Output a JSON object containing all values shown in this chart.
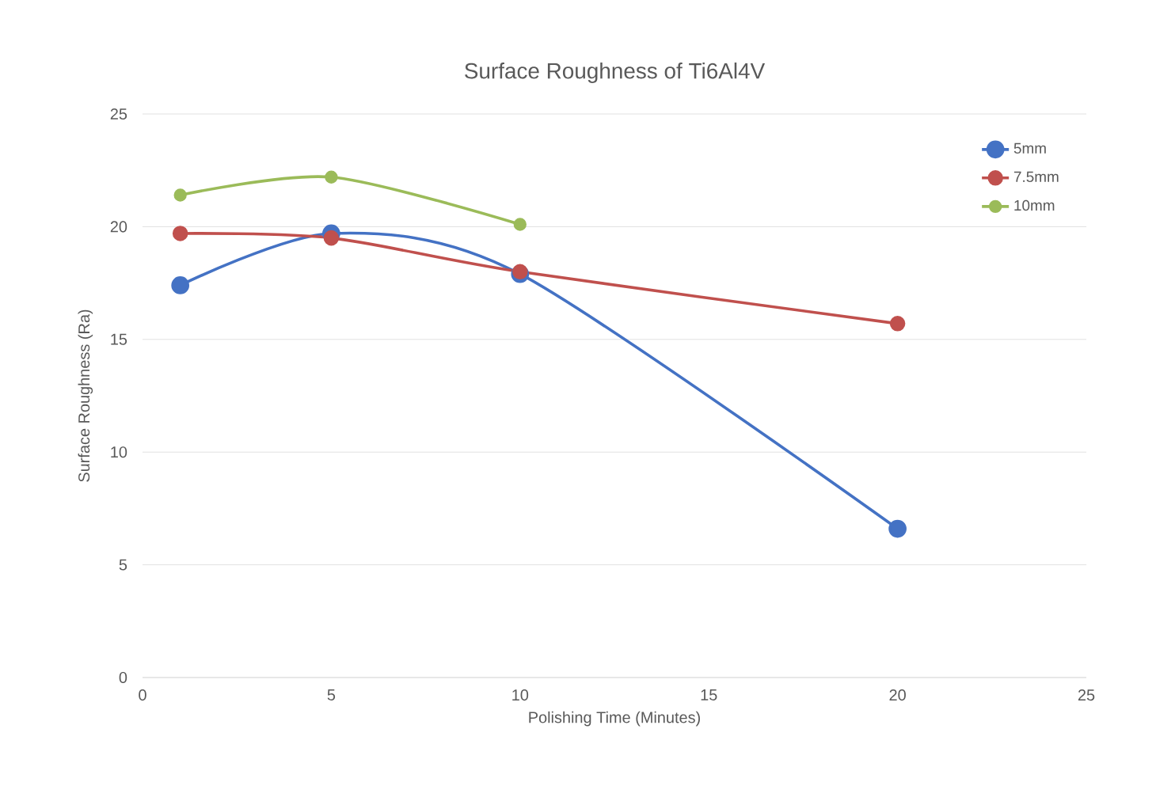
{
  "chart_data": {
    "type": "line",
    "title": "Surface Roughness of Ti6Al4V",
    "xlabel": "Polishing Time (Minutes)",
    "ylabel": "Surface Roughness (Ra)",
    "x": [
      1,
      5,
      10,
      20
    ],
    "series": [
      {
        "name": "5mm",
        "color": "#4472c4",
        "values": [
          17.4,
          19.7,
          17.9,
          6.6
        ]
      },
      {
        "name": "7.5mm",
        "color": "#c0504d",
        "values": [
          19.7,
          19.5,
          18.0,
          15.7
        ]
      },
      {
        "name": "10mm",
        "color": "#9bbb59",
        "x": [
          1,
          5,
          10
        ],
        "values": [
          21.4,
          22.2,
          20.1
        ]
      }
    ],
    "xlim": [
      0,
      25
    ],
    "ylim": [
      0,
      25
    ],
    "xticks": [
      0,
      5,
      10,
      15,
      20,
      25
    ],
    "yticks": [
      0,
      5,
      10,
      15,
      20,
      25
    ],
    "grid": "y",
    "legend": "top right",
    "marker": "circle",
    "line_style": "solid"
  }
}
